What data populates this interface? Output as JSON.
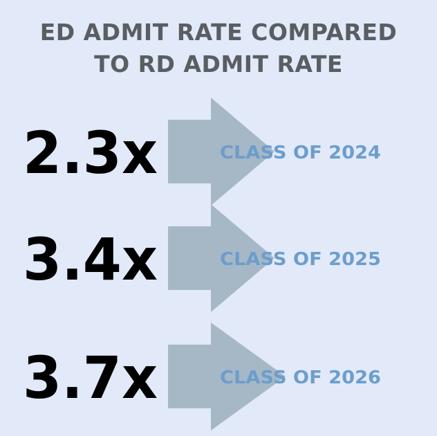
{
  "title_line1": "ED ADMIT RATE COMPARED",
  "title_line2": "TO RD ADMIT RATE",
  "chart_data": {
    "type": "table",
    "title": "ED ADMIT RATE COMPARED TO RD ADMIT RATE",
    "rows": [
      {
        "multiplier": "2.3x",
        "value": 2.3,
        "class": "CLASS OF 2024"
      },
      {
        "multiplier": "3.4x",
        "value": 3.4,
        "class": "CLASS OF 2025"
      },
      {
        "multiplier": "3.7x",
        "value": 3.7,
        "class": "CLASS OF 2026"
      }
    ]
  },
  "colors": {
    "background": "#e2e9f8",
    "title": "#5a5d62",
    "multiplier": "#000000",
    "arrow": "#a6b8c6",
    "class_label": "#6c9dcc"
  },
  "icons": [
    "arrow-right-icon"
  ]
}
